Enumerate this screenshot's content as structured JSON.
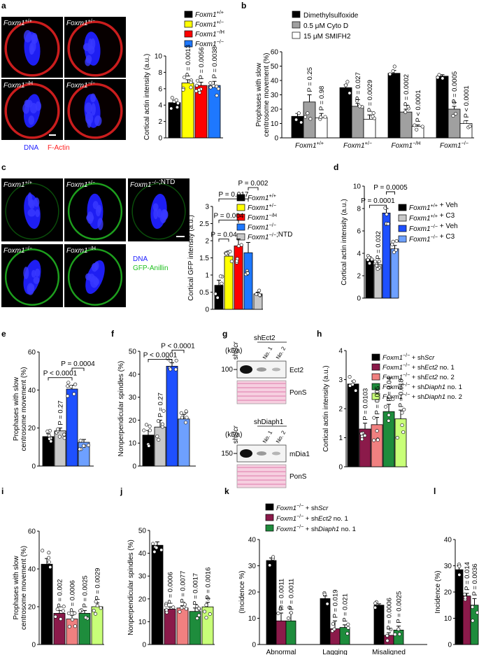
{
  "figure": {
    "colors": {
      "wt": "#000000",
      "het": "#ffff00",
      "hypo": "#ff0000",
      "null": "#1e78ff",
      "ntd": "#c8c8c8",
      "veh_wt": "#000000",
      "c3_wt": "#c8c8c8",
      "veh_null": "#1e50ff",
      "c3_null": "#6ea0ff",
      "scr": "#000000",
      "ect2_1": "#8b1a4a",
      "ect2_2": "#f08080",
      "diaph_1": "#1e8c3c",
      "diaph_2": "#c8ff78",
      "dmso": "#000000",
      "cytod": "#a0a0a0",
      "smifh2": "#ffffff",
      "dna": "#2020ff",
      "actin": "#ff2020",
      "gfp": "#20c020"
    },
    "panels": {
      "a": {
        "letter": "a",
        "images": [
          {
            "label": "Foxm1",
            "sup": "+/+"
          },
          {
            "label": "Foxm1",
            "sup": "+/−"
          },
          {
            "label": "Foxm1",
            "sup": "−/H"
          },
          {
            "label": "Foxm1",
            "sup": "−/−"
          }
        ],
        "stain_dna": "DNA",
        "stain_actin": "F-Actin",
        "legend": [
          {
            "gene": "Foxm1",
            "sup": "+/+",
            "color": "wt"
          },
          {
            "gene": "Foxm1",
            "sup": "+/−",
            "color": "het"
          },
          {
            "gene": "Foxm1",
            "sup": "−/H",
            "color": "hypo"
          },
          {
            "gene": "Foxm1",
            "sup": "−/−",
            "color": "null"
          }
        ]
      },
      "b": {
        "letter": "b",
        "legend": [
          {
            "text": "Dimethylsulfoxide",
            "color": "dmso"
          },
          {
            "text": "0.5 μM Cyto D",
            "color": "cytod"
          },
          {
            "text": "15 μM SMIFH2",
            "color": "smifh2"
          }
        ]
      },
      "c": {
        "letter": "c",
        "images": [
          {
            "label": "Foxm1",
            "sup": "+/+",
            "extra": ""
          },
          {
            "label": "Foxm1",
            "sup": "+/−",
            "extra": ""
          },
          {
            "label": "Foxm1",
            "sup": "−/−",
            "extra": ";NTD"
          },
          {
            "label": "Foxm1",
            "sup": "−/−",
            "extra": ""
          },
          {
            "label": "Foxm1",
            "sup": "−/H",
            "extra": ""
          }
        ],
        "stain_dna": "DNA",
        "stain_gfp": "GFP-Anillin",
        "legend": [
          {
            "gene": "Foxm1",
            "sup": "+/+",
            "extra": "",
            "color": "wt"
          },
          {
            "gene": "Foxm1",
            "sup": "+/−",
            "extra": "",
            "color": "het"
          },
          {
            "gene": "Foxm1",
            "sup": "−/H",
            "extra": "",
            "color": "hypo"
          },
          {
            "gene": "Foxm1",
            "sup": "−/−",
            "extra": "",
            "color": "null"
          },
          {
            "gene": "Foxm1",
            "sup": "−/−",
            "extra": ";NTD",
            "color": "ntd"
          }
        ]
      },
      "d": {
        "letter": "d",
        "legend": [
          {
            "gene": "Foxm1",
            "sup": "+/+",
            "extra": " + Veh",
            "color": "veh_wt"
          },
          {
            "gene": "Foxm1",
            "sup": "+/+",
            "extra": " + C3",
            "color": "c3_wt"
          },
          {
            "gene": "Foxm1",
            "sup": "−/−",
            "extra": " + Veh",
            "color": "veh_null"
          },
          {
            "gene": "Foxm1",
            "sup": "−/−",
            "extra": " + C3",
            "color": "c3_null"
          }
        ]
      },
      "e": {
        "letter": "e"
      },
      "f": {
        "letter": "f"
      },
      "g": {
        "letter": "g",
        "blot1": {
          "lane_scr": "shScr",
          "group": "sh",
          "group_gene": "Ect2",
          "lanes": [
            "No. 1",
            "No. 2"
          ],
          "kda_label": "(kDa)",
          "mw": "100",
          "band": "Ect2",
          "loading": "PonS"
        },
        "blot2": {
          "lane_scr": "shScr",
          "group": "sh",
          "group_gene": "Diaph1",
          "lanes": [
            "No. 1",
            "No. 2"
          ],
          "kda_label": "(kDa)",
          "mw": "150",
          "band": "mDia1",
          "loading": "PonS"
        }
      },
      "h": {
        "letter": "h",
        "legend": [
          {
            "gene": "Foxm1",
            "sup": "−/−",
            "tail": " + sh",
            "tg": "Scr",
            "num": "",
            "color": "scr"
          },
          {
            "gene": "Foxm1",
            "sup": "−/−",
            "tail": " + sh",
            "tg": "Ect2",
            "num": " no. 1",
            "color": "ect2_1"
          },
          {
            "gene": "Foxm1",
            "sup": "−/−",
            "tail": " + sh",
            "tg": "Ect2",
            "num": " no. 2",
            "color": "ect2_2"
          },
          {
            "gene": "Foxm1",
            "sup": "−/−",
            "tail": " + sh",
            "tg": "Diaph1",
            "num": " no. 1",
            "color": "diaph_1"
          },
          {
            "gene": "Foxm1",
            "sup": "−/−",
            "tail": " + sh",
            "tg": "Diaph1",
            "num": " no. 2",
            "color": "diaph_2"
          }
        ]
      },
      "i": {
        "letter": "i"
      },
      "j": {
        "letter": "j"
      },
      "k": {
        "letter": "k",
        "legend": [
          {
            "gene": "Foxm1",
            "sup": "−/−",
            "tail": " + sh",
            "tg": "Scr",
            "num": "",
            "color": "scr"
          },
          {
            "gene": "Foxm1",
            "sup": "−/−",
            "tail": " + sh",
            "tg": "Ect2",
            "num": " no. 1",
            "color": "ect2_1"
          },
          {
            "gene": "Foxm1",
            "sup": "−/−",
            "tail": " + sh",
            "tg": "Diaph1",
            "num": " no. 1",
            "color": "diaph_1"
          }
        ]
      },
      "l": {
        "letter": "l"
      }
    }
  },
  "chart_data": [
    {
      "id": "a",
      "type": "bar",
      "ylabel": "Cortical actin intensity (a.u.)",
      "ylim": [
        0,
        10
      ],
      "yticks": [
        0,
        2,
        4,
        6,
        8,
        10
      ],
      "categories": [
        "Foxm1+/+",
        "Foxm1+/−",
        "Foxm1−/H",
        "Foxm1−/−"
      ],
      "values": [
        4.3,
        6.7,
        6.4,
        6.4
      ],
      "errors": [
        0.3,
        0.4,
        0.4,
        0.5
      ],
      "colors": [
        "wt",
        "het",
        "hypo",
        "null"
      ],
      "pvalues": [
        "",
        "P = 0.0013",
        "P = 0.0056",
        "P = 0.0038"
      ]
    },
    {
      "id": "b",
      "type": "bar",
      "ylabel": "Prophases with slow centrosome movement (%)",
      "ylim": [
        0,
        60
      ],
      "yticks": [
        0,
        10,
        20,
        30,
        40,
        50,
        60
      ],
      "groups": [
        {
          "label": "Foxm1",
          "sup": "+/+",
          "values": [
            15,
            25,
            14
          ],
          "errors": [
            2,
            5,
            3
          ],
          "pvalues": [
            "",
            "P = 0.25",
            "P = 0.98"
          ]
        },
        {
          "label": "Foxm1",
          "sup": "+/−",
          "values": [
            35,
            22,
            13
          ],
          "errors": [
            2,
            2,
            3
          ],
          "pvalues": [
            "",
            "P = 0.027",
            "P = 0.0029"
          ]
        },
        {
          "label": "Foxm1",
          "sup": "−/H",
          "values": [
            45,
            18,
            8
          ],
          "errors": [
            2,
            2,
            1
          ],
          "pvalues": [
            "",
            "P = 0.0002",
            "P < 0.0001"
          ]
        },
        {
          "label": "Foxm1",
          "sup": "−/−",
          "values": [
            43,
            20,
            10
          ],
          "errors": [
            1,
            2,
            2
          ],
          "pvalues": [
            "",
            "P = 0.0005",
            "P < 0.0001"
          ]
        }
      ],
      "series_colors": [
        "dmso",
        "cytod",
        "smifh2"
      ]
    },
    {
      "id": "c",
      "type": "bar",
      "ylabel": "Cortical GFP intensity (a.u.)",
      "ylim": [
        0,
        3.0
      ],
      "yticks": [
        0,
        0.5,
        1.0,
        1.5,
        2.0,
        2.5,
        3.0
      ],
      "categories": [
        "Foxm1+/+",
        "Foxm1+/−",
        "Foxm1−/H",
        "Foxm1−/−",
        "Foxm1−/−;NTD"
      ],
      "values": [
        0.7,
        1.55,
        1.85,
        1.65,
        0.45
      ],
      "errors": [
        0.15,
        0.15,
        0.2,
        0.3,
        0.05
      ],
      "colors": [
        "wt",
        "het",
        "hypo",
        "null",
        "ntd"
      ],
      "brackets": [
        {
          "from": 0,
          "to": 1,
          "label": "P = 0.04"
        },
        {
          "from": 0,
          "to": 2,
          "label": "P = 0.004"
        },
        {
          "from": 0,
          "to": 3,
          "label": "P = 0.017"
        },
        {
          "from": 3,
          "to": 4,
          "label": "P = 0.002"
        }
      ]
    },
    {
      "id": "d",
      "type": "bar",
      "ylabel": "Cortical actin intensity (a.u.)",
      "ylim": [
        0,
        10
      ],
      "yticks": [
        0,
        2,
        4,
        6,
        8,
        10
      ],
      "categories": [
        "Foxm1+/+ + Veh",
        "Foxm1+/+ + C3",
        "Foxm1−/− + Veh",
        "Foxm1−/− + C3"
      ],
      "values": [
        3.5,
        3.0,
        7.6,
        4.4
      ],
      "errors": [
        0.2,
        0.2,
        0.4,
        0.3
      ],
      "colors": [
        "veh_wt",
        "c3_wt",
        "veh_null",
        "c3_null"
      ],
      "pvalues": [
        "",
        "P = 0.032",
        "",
        ""
      ],
      "brackets": [
        {
          "from": 0,
          "to": 2,
          "label": "P = 0.0001"
        },
        {
          "from": 2,
          "to": 3,
          "label": "P = 0.0005"
        }
      ]
    },
    {
      "id": "e",
      "type": "bar",
      "ylabel": "Prophases with slow centrosome movement (%)",
      "ylim": [
        0,
        60
      ],
      "yticks": [
        0,
        20,
        40,
        60
      ],
      "categories": [
        "Foxm1+/+ + Veh",
        "Foxm1+/+ + C3",
        "Foxm1−/− + Veh",
        "Foxm1−/− + C3"
      ],
      "values": [
        15.5,
        18.5,
        40.5,
        12.5
      ],
      "errors": [
        1.5,
        1.5,
        2,
        1.5
      ],
      "colors": [
        "veh_wt",
        "c3_wt",
        "veh_null",
        "c3_null"
      ],
      "pvalues": [
        "",
        "P = 0.27",
        "",
        ""
      ],
      "brackets": [
        {
          "from": 0,
          "to": 2,
          "label": "P < 0.0001"
        },
        {
          "from": 2,
          "to": 3,
          "label": "P = 0.0004"
        }
      ]
    },
    {
      "id": "f",
      "type": "bar",
      "ylabel": "Nonperpendicular spindles (%)",
      "ylim": [
        0,
        50
      ],
      "yticks": [
        0,
        10,
        20,
        30,
        40,
        50
      ],
      "categories": [
        "Foxm1+/+ + Veh",
        "Foxm1+/+ + C3",
        "Foxm1−/− + Veh",
        "Foxm1−/− + C3"
      ],
      "values": [
        13.5,
        17,
        43.5,
        20.5
      ],
      "errors": [
        2,
        3,
        1.5,
        2
      ],
      "colors": [
        "veh_wt",
        "c3_wt",
        "veh_null",
        "c3_null"
      ],
      "pvalues": [
        "",
        "P = 0.27",
        "",
        ""
      ],
      "brackets": [
        {
          "from": 0,
          "to": 2,
          "label": "P < 0.0001"
        },
        {
          "from": 2,
          "to": 3,
          "label": "P < 0.0001"
        }
      ]
    },
    {
      "id": "h",
      "type": "bar",
      "ylabel": "Cortical actin intensity (a.u.)",
      "ylim": [
        0,
        4
      ],
      "yticks": [
        0,
        1,
        2,
        3,
        4
      ],
      "categories": [
        "shScr",
        "shEct2 no. 1",
        "shEct2 no. 2",
        "shDiaph1 no. 1",
        "shDiaph1 no. 2"
      ],
      "values": [
        2.85,
        1.3,
        1.45,
        1.9,
        1.65
      ],
      "errors": [
        0.1,
        0.2,
        0.25,
        0.25,
        0.3
      ],
      "colors": [
        "scr",
        "ect2_1",
        "ect2_2",
        "diaph_1",
        "diaph_2"
      ],
      "pvalues": [
        "",
        "P = 0.0103",
        "P = 0.005",
        "P = 0.04",
        "P = 0.018"
      ]
    },
    {
      "id": "i",
      "type": "bar",
      "ylabel": "Prophases with slow centrosome movement (%)",
      "ylim": [
        0,
        60
      ],
      "yticks": [
        0,
        20,
        40,
        60
      ],
      "categories": [
        "shScr",
        "shEct2 no. 1",
        "shEct2 no. 2",
        "shDiaph1 no. 1",
        "shDiaph1 no. 2"
      ],
      "values": [
        42.5,
        16.5,
        13.5,
        16.5,
        20
      ],
      "errors": [
        3,
        1.5,
        2,
        1.5,
        2
      ],
      "colors": [
        "scr",
        "ect2_1",
        "ect2_2",
        "diaph_1",
        "diaph_2"
      ],
      "pvalues": [
        "",
        "P = 0.002",
        "P = 0.0006",
        "P = 0.0025",
        "P = 0.0029"
      ]
    },
    {
      "id": "j",
      "type": "bar",
      "ylabel": "Nonperpendicular spindles (%)",
      "ylim": [
        0,
        50
      ],
      "yticks": [
        0,
        10,
        20,
        30,
        40,
        50
      ],
      "categories": [
        "shScr",
        "shEct2 no. 1",
        "shEct2 no. 2",
        "shDiaph1 no. 1",
        "shDiaph1 no. 2"
      ],
      "values": [
        43.5,
        15.5,
        16,
        14.5,
        16.5
      ],
      "errors": [
        1.5,
        1,
        1,
        1.5,
        2
      ],
      "colors": [
        "scr",
        "ect2_1",
        "ect2_2",
        "diaph_1",
        "diaph_2"
      ],
      "pvalues": [
        "",
        "P = 0.0006",
        "P = 0.0077",
        "P = 0.0017",
        "P = 0.0016"
      ]
    },
    {
      "id": "k",
      "type": "bar",
      "ylabel": "(Incidence %)",
      "ylim": [
        0,
        40
      ],
      "yticks": [
        0,
        10,
        20,
        30,
        40
      ],
      "groups": [
        {
          "label": "Abnormal",
          "values": [
            32,
            9,
            9
          ],
          "errors": [
            1,
            3,
            3
          ],
          "pvalues": [
            "",
            "P = 0.0011",
            "P = 0.0011"
          ]
        },
        {
          "label": "Lagging",
          "values": [
            17.5,
            6,
            6.5
          ],
          "errors": [
            1,
            3,
            1
          ],
          "pvalues": [
            "",
            "P = 0.019",
            "P = 0.021"
          ]
        },
        {
          "label": "Misaligned",
          "values": [
            15,
            3.5,
            5.5
          ],
          "errors": [
            0.5,
            1,
            1.5
          ],
          "pvalues": [
            "",
            "P = 0.0006",
            "P = 0.0025"
          ]
        }
      ],
      "series_colors": [
        "scr",
        "ect2_1",
        "diaph_1"
      ]
    },
    {
      "id": "l",
      "type": "bar",
      "ylabel": "Incidence (%)",
      "ylim": [
        0,
        40
      ],
      "yticks": [
        0,
        10,
        20,
        30,
        40
      ],
      "categories": [
        "shScr",
        "shEct2 no. 1",
        "shDiaph1 no. 1"
      ],
      "values": [
        28.5,
        18.5,
        15
      ],
      "errors": [
        1.5,
        1,
        2.5
      ],
      "colors": [
        "scr",
        "ect2_1",
        "diaph_1"
      ],
      "pvalues": [
        "",
        "P = 0.014",
        "P = 0.0036"
      ]
    }
  ]
}
